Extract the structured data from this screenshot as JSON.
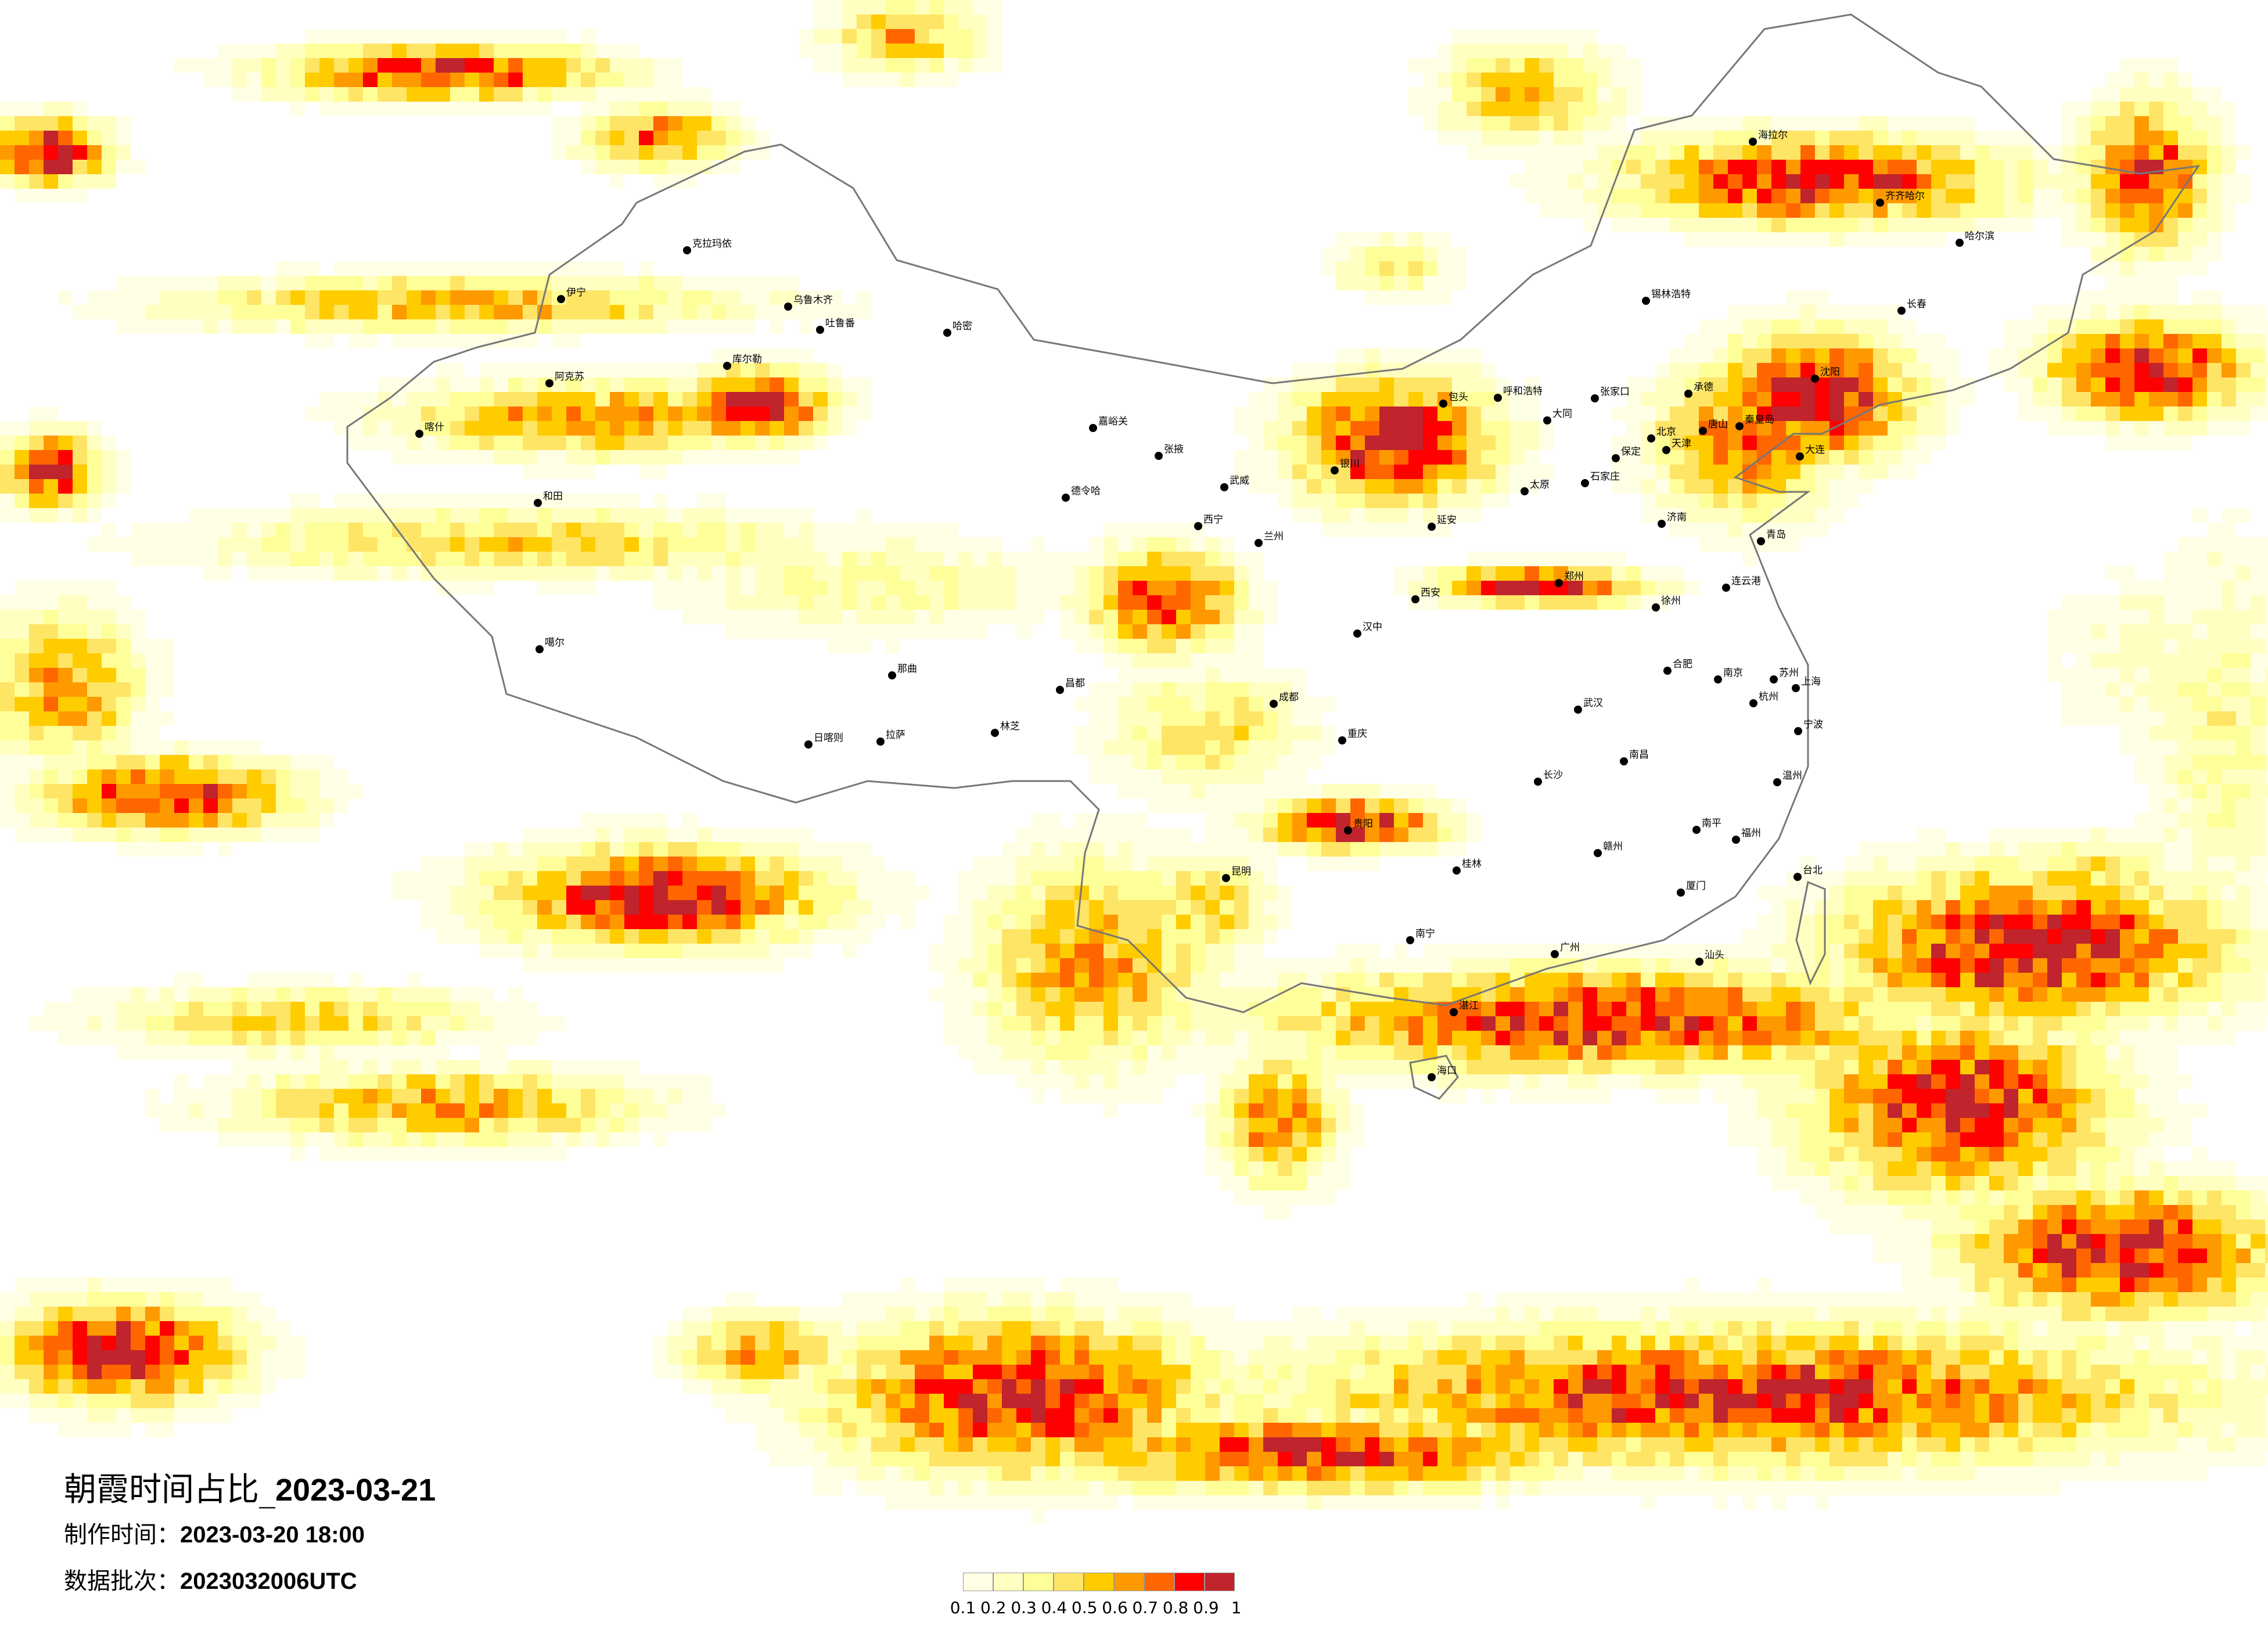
{
  "title": {
    "prefix": "朝霞时间占比_",
    "date": "2023-03-21"
  },
  "made_time": {
    "label": "制作时间：",
    "value": "2023-03-20 18:00"
  },
  "data_batch": {
    "label": "数据批次：",
    "value": "2023032006UTC"
  },
  "colorbar": {
    "labels": [
      "0.1",
      "0.2",
      "0.3",
      "0.4",
      "0.5",
      "0.6",
      "0.7",
      "0.8",
      "0.9",
      "1"
    ],
    "colors": [
      "#FFFFE6",
      "#FFFFC2",
      "#FFFF99",
      "#FFE566",
      "#FFCC00",
      "#FF9900",
      "#FF6600",
      "#FF0000",
      "#C0242C"
    ]
  },
  "cities": [
    "北京",
    "天津",
    "唐山",
    "石家庄",
    "太原",
    "呼和浩特",
    "包头",
    "银川",
    "兰州",
    "西宁",
    "西安",
    "郑州",
    "济南",
    "青岛",
    "大连",
    "南京",
    "上海",
    "杭州",
    "合肥",
    "武汉",
    "长沙",
    "南昌",
    "福州",
    "成都",
    "重庆",
    "贵阳",
    "昆明",
    "桂林",
    "南宁",
    "广州",
    "海口",
    "台北",
    "厦门",
    "哈尔滨",
    "长春",
    "沈阳",
    "齐齐哈尔",
    "海拉尔",
    "锡林浩特",
    "乌鲁木齐",
    "克拉玛依",
    "伊宁",
    "阿克苏",
    "喀什",
    "和田",
    "哈密",
    "库尔勒",
    "吐鲁番",
    "德令哈",
    "拉萨",
    "日喀则",
    "那曲",
    "林芝",
    "昌都",
    "噶尔",
    "嘉峪关",
    "张掖",
    "武威",
    "延安",
    "汉中",
    "大同",
    "张家口",
    "承德",
    "秦皇岛",
    "保定",
    "徐州",
    "连云港",
    "苏州",
    "宁波",
    "温州",
    "赣州",
    "南平",
    "汕头",
    "湛江"
  ]
}
